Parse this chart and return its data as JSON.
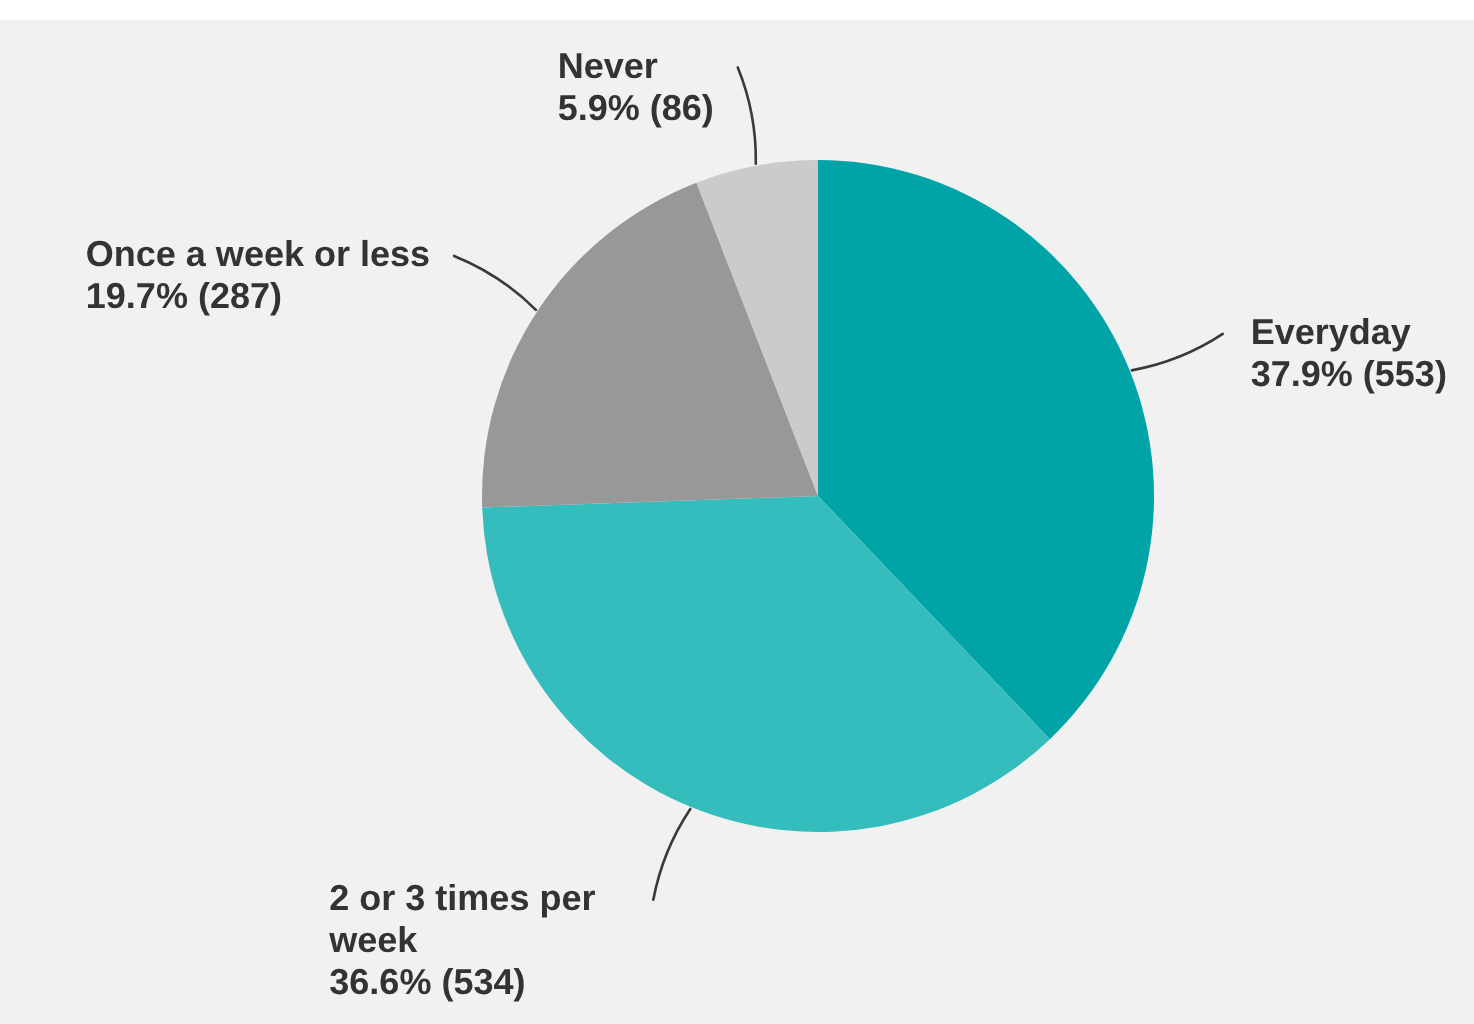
{
  "chart_data": {
    "type": "pie",
    "categories": [
      "Everyday",
      "2 or 3 times per week",
      "Once a week or less",
      "Never"
    ],
    "values": [
      553,
      534,
      287,
      86
    ],
    "colors": [
      "#00a4a6",
      "#35bdbe",
      "#989898",
      "#cbcbcb"
    ],
    "value_labels": [
      "37.9% (553)",
      "36.6% (534)",
      "19.7% (287)",
      "5.9% (86)"
    ]
  }
}
